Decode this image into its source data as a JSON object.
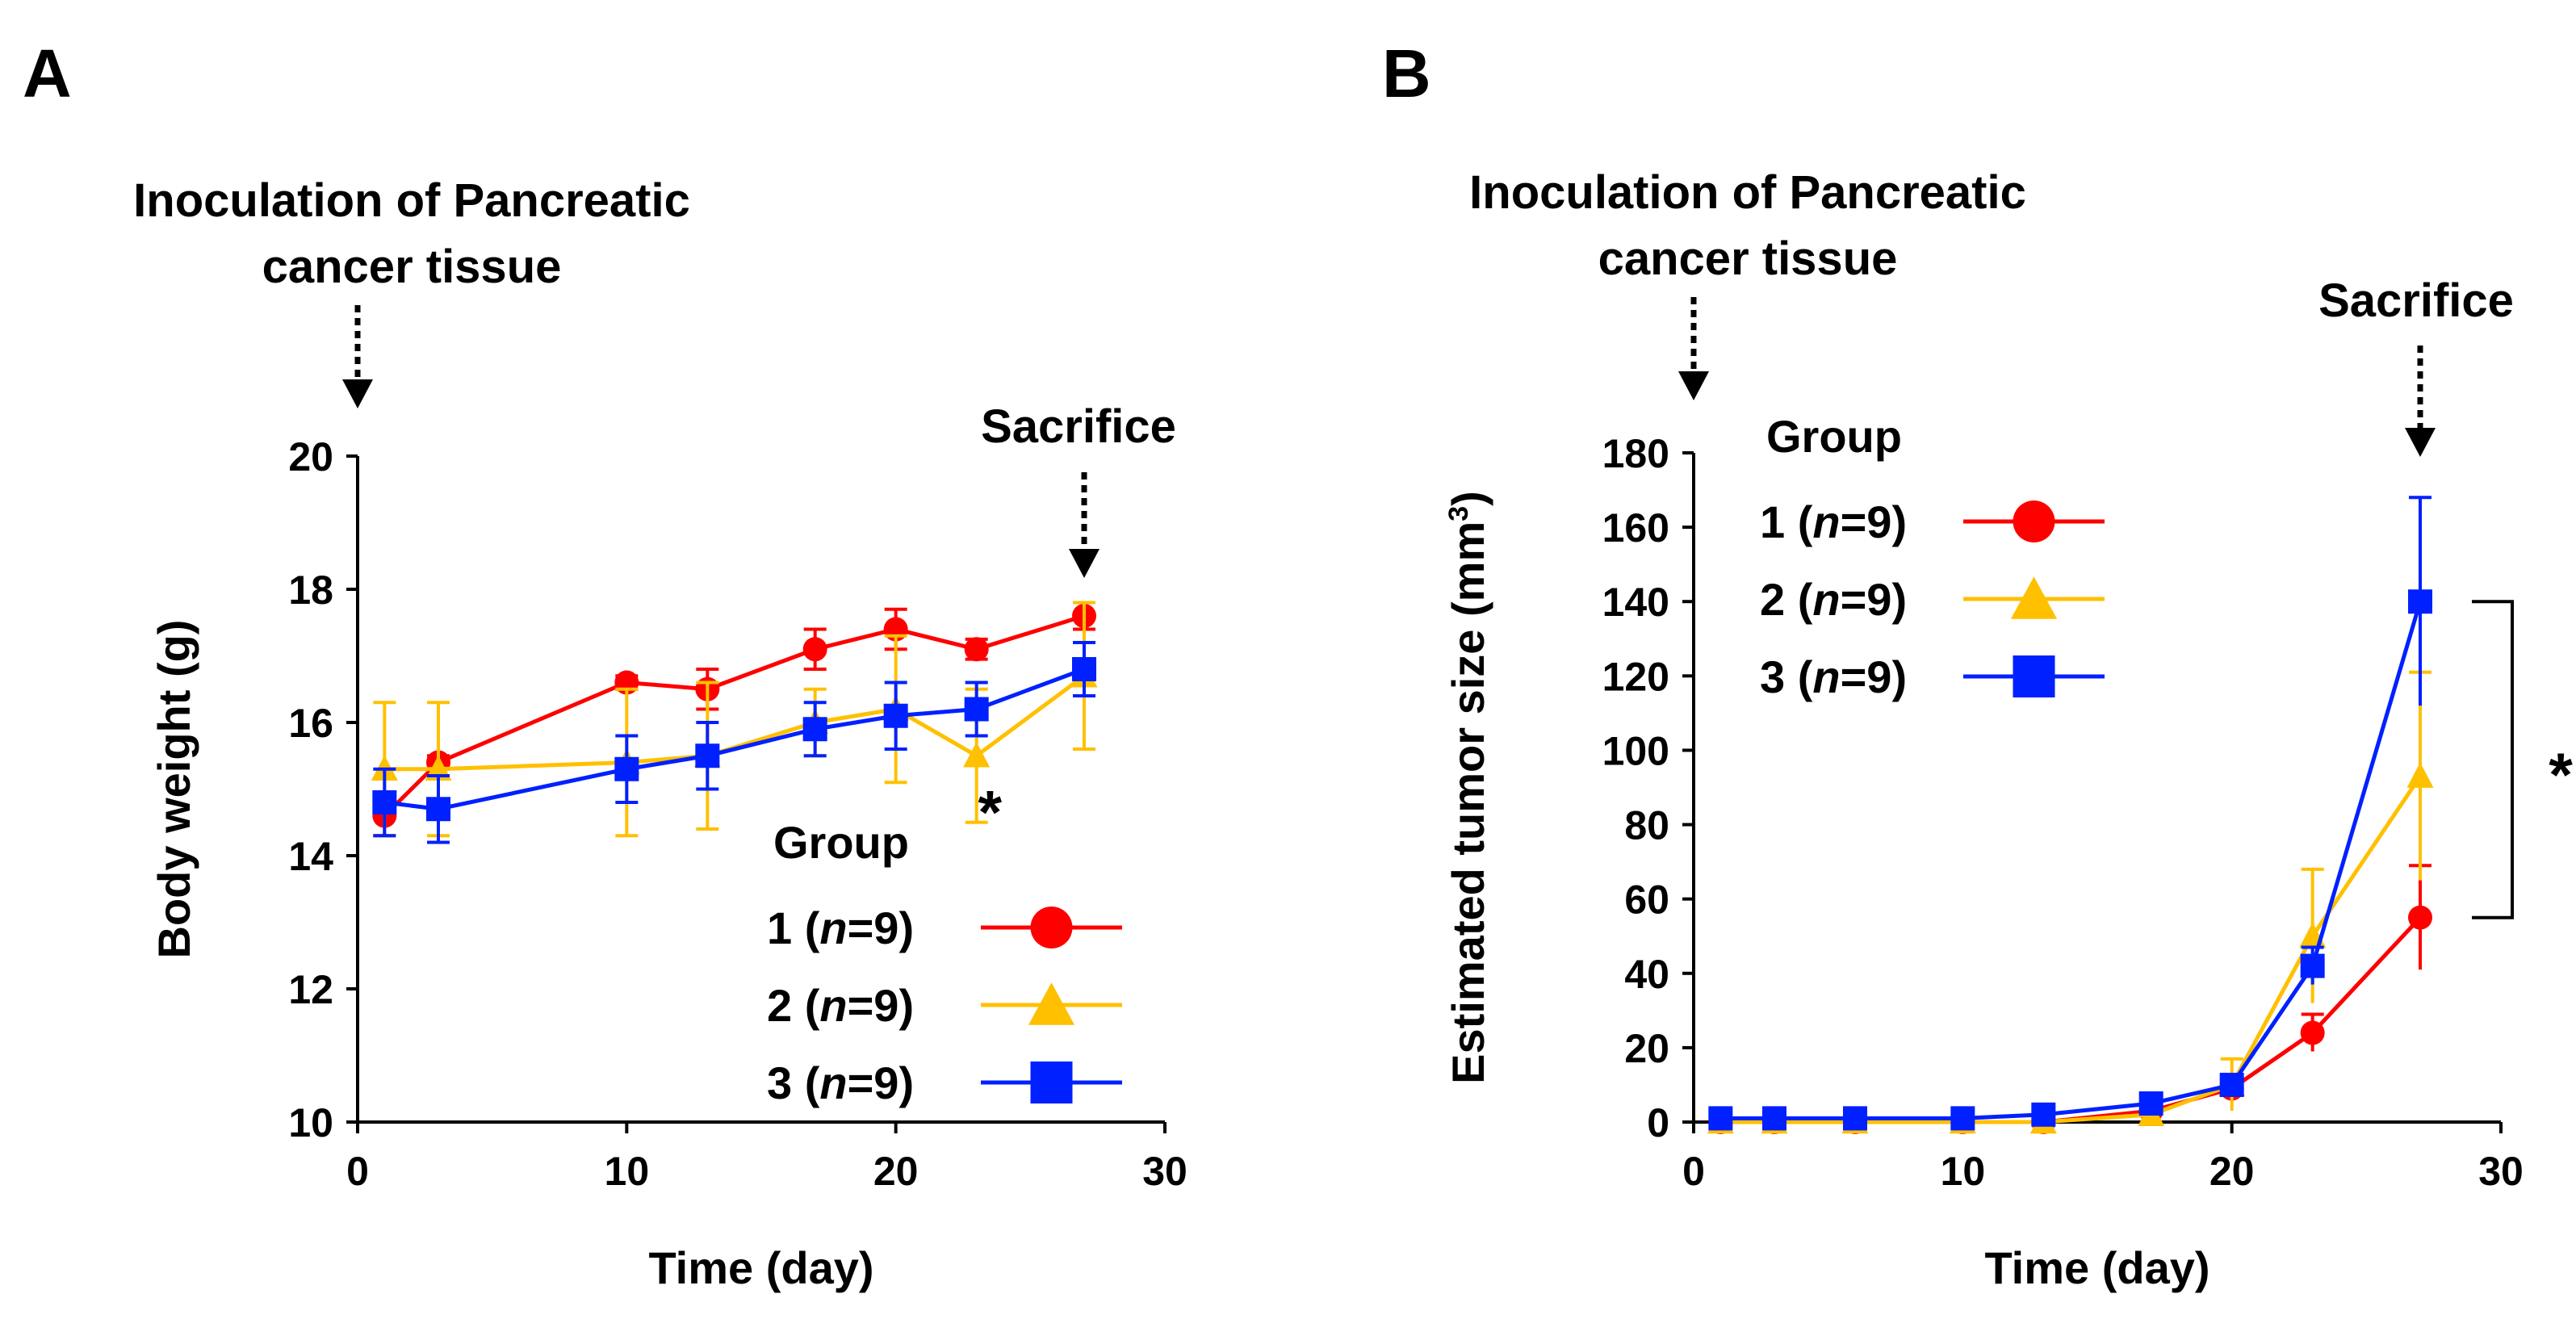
{
  "chart_data": [
    {
      "panel_label": "A",
      "type": "line",
      "xlabel": "Time (day)",
      "ylabel": "Body weight (g)",
      "xlim": [
        0,
        30
      ],
      "ylim": [
        10,
        20
      ],
      "xticks": [
        0,
        10,
        20,
        30
      ],
      "yticks": [
        10,
        12,
        14,
        16,
        18,
        20
      ],
      "annotation_start": "Inoculation of Pancreatic cancer tissue",
      "annotation_start_lines": [
        "Inoculation of Pancreatic",
        "cancer tissue"
      ],
      "annotation_start_x": 0,
      "annotation_end": "Sacrifice",
      "annotation_end_x": 27,
      "significance": {
        "text": "*",
        "x": 23.5,
        "y": 15.0
      },
      "legend": {
        "title": "Group",
        "placement": "bottom-right"
      },
      "series": [
        {
          "name": "1 (n=9)",
          "group": "1",
          "n_label": "n",
          "n_value": "=9",
          "color": "#ff0000",
          "marker": "circle",
          "x": [
            1,
            3,
            10,
            13,
            17,
            20,
            23,
            27
          ],
          "values": [
            14.6,
            15.4,
            16.6,
            16.5,
            17.1,
            17.4,
            17.1,
            17.6
          ],
          "errors": [
            0.3,
            0.1,
            0.1,
            0.3,
            0.3,
            0.3,
            0.15,
            0.2
          ]
        },
        {
          "name": "2 (n=9)",
          "group": "2",
          "n_label": "n",
          "n_value": "=9",
          "color": "#ffc000",
          "marker": "triangle",
          "x": [
            1,
            3,
            10,
            13,
            17,
            20,
            23,
            27
          ],
          "values": [
            15.3,
            15.3,
            15.4,
            15.5,
            16.0,
            16.2,
            15.5,
            16.7
          ],
          "errors": [
            1.0,
            1.0,
            1.1,
            1.1,
            0.5,
            1.1,
            1.0,
            1.1
          ]
        },
        {
          "name": "3 (n=9)",
          "group": "3",
          "n_label": "n",
          "n_value": "=9",
          "color": "#0020ff",
          "marker": "square",
          "x": [
            1,
            3,
            10,
            13,
            17,
            20,
            23,
            27
          ],
          "values": [
            14.8,
            14.7,
            15.3,
            15.5,
            15.9,
            16.1,
            16.2,
            16.8
          ],
          "errors": [
            0.5,
            0.5,
            0.5,
            0.5,
            0.4,
            0.5,
            0.4,
            0.4
          ]
        }
      ]
    },
    {
      "panel_label": "B",
      "type": "line",
      "xlabel": "Time (day)",
      "ylabel": "Estimated tumor size (mm³)",
      "ylabel_base": "Estimated tumor size (mm",
      "ylabel_sup": "3",
      "ylabel_close": ")",
      "xlim": [
        0,
        30
      ],
      "ylim": [
        0,
        180
      ],
      "xticks": [
        0,
        10,
        20,
        30
      ],
      "yticks": [
        0,
        20,
        40,
        60,
        80,
        100,
        120,
        140,
        160,
        180
      ],
      "annotation_start": "Inoculation of Pancreatic cancer tissue",
      "annotation_start_lines": [
        "Inoculation of Pancreatic",
        "cancer tissue"
      ],
      "annotation_start_x": 0,
      "annotation_end": "Sacrifice",
      "annotation_end_x": 27,
      "significance": {
        "text": "*",
        "between": [
          "3 (n=9)",
          "1 (n=9)"
        ],
        "y_top": 140,
        "y_bottom": 55
      },
      "legend": {
        "title": "Group",
        "placement": "top-left"
      },
      "series": [
        {
          "name": "1 (n=9)",
          "group": "1",
          "n_label": "n",
          "n_value": "=9",
          "color": "#ff0000",
          "marker": "circle",
          "x": [
            1,
            3,
            6,
            10,
            13,
            17,
            20,
            23,
            27
          ],
          "values": [
            0,
            0,
            0,
            0,
            0,
            3,
            9,
            24,
            55
          ],
          "errors": [
            0,
            0,
            0,
            0,
            0,
            1,
            2,
            5,
            14
          ]
        },
        {
          "name": "2 (n=9)",
          "group": "2",
          "n_label": "n",
          "n_value": "=9",
          "color": "#ffc000",
          "marker": "triangle",
          "x": [
            1,
            3,
            6,
            10,
            13,
            17,
            20,
            23,
            27
          ],
          "values": [
            0,
            0,
            0,
            0,
            0,
            2,
            10,
            50,
            93
          ],
          "errors": [
            0,
            0,
            0,
            0,
            0,
            1,
            7,
            18,
            28
          ]
        },
        {
          "name": "3 (n=9)",
          "group": "3",
          "n_label": "n",
          "n_value": "=9",
          "color": "#0020ff",
          "marker": "square",
          "x": [
            1,
            3,
            6,
            10,
            13,
            17,
            20,
            23,
            27
          ],
          "values": [
            1,
            1,
            1,
            1,
            2,
            5,
            10,
            42,
            140
          ],
          "errors": [
            0,
            0,
            0,
            0,
            0,
            1,
            2,
            5,
            28
          ]
        }
      ]
    }
  ]
}
